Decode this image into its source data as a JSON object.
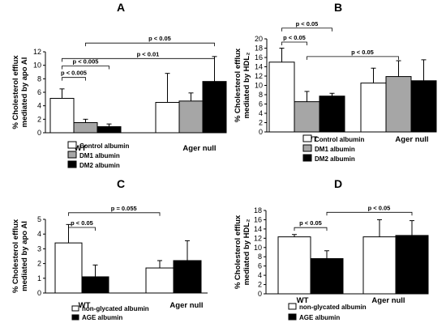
{
  "chart_data": [
    {
      "panel": "A",
      "type": "bar",
      "ylabel_lines": [
        "% Cholesterol efflux",
        "mediated by apo AI"
      ],
      "ylim": [
        0,
        12
      ],
      "yticks": [
        0,
        2,
        4,
        6,
        8,
        10,
        12
      ],
      "categories": [
        "WT",
        "Ager null"
      ],
      "series": [
        {
          "name": "Control albumin",
          "color": "#ffffff",
          "values": [
            5.1,
            4.5
          ],
          "errors": [
            1.4,
            4.3
          ]
        },
        {
          "name": "DM1 albumin",
          "color": "#a6a6a6",
          "values": [
            1.5,
            4.7
          ],
          "errors": [
            0.5,
            1.2
          ]
        },
        {
          "name": "DM2 albumin",
          "color": "#000000",
          "values": [
            0.9,
            7.6
          ],
          "errors": [
            0.4,
            3.7
          ]
        }
      ],
      "annotations": [
        {
          "text": "p < 0.005",
          "from": [
            0,
            0
          ],
          "to": [
            0,
            1
          ],
          "y": 8.2
        },
        {
          "text": "p < 0.005",
          "from": [
            0,
            0
          ],
          "to": [
            0,
            2
          ],
          "y": 9.9
        },
        {
          "text": "p < 0.01",
          "from": [
            0,
            0
          ],
          "to": [
            1,
            2
          ],
          "y": 11.0
        },
        {
          "text": "p < 0.05",
          "from": [
            0,
            1
          ],
          "to": [
            1,
            2
          ],
          "y": 13.3
        }
      ]
    },
    {
      "panel": "B",
      "type": "bar",
      "ylabel_lines": [
        "% Cholesterol efflux",
        "mediated by HDL₂"
      ],
      "ylim": [
        0,
        20
      ],
      "yticks": [
        0,
        2,
        4,
        6,
        8,
        10,
        12,
        14,
        16,
        18,
        20
      ],
      "categories": [
        "WT",
        "Ager null"
      ],
      "series": [
        {
          "name": "Control albumin",
          "color": "#ffffff",
          "values": [
            15.0,
            10.5
          ],
          "errors": [
            3.0,
            3.2
          ]
        },
        {
          "name": "DM1 albumin",
          "color": "#a6a6a6",
          "values": [
            6.5,
            11.9
          ],
          "errors": [
            2.2,
            3.4
          ]
        },
        {
          "name": "DM2 albumin",
          "color": "#000000",
          "values": [
            7.7,
            11.0
          ],
          "errors": [
            0.6,
            4.5
          ]
        }
      ],
      "annotations": [
        {
          "text": "p < 0.05",
          "from": [
            0,
            0
          ],
          "to": [
            0,
            1
          ],
          "y": 19.3
        },
        {
          "text": "p < 0.05",
          "from": [
            0,
            0
          ],
          "to": [
            0,
            2
          ],
          "y": 22.3
        },
        {
          "text": "p < 0.05",
          "from": [
            0,
            1
          ],
          "to": [
            1,
            1
          ],
          "y": 16.2
        }
      ]
    },
    {
      "panel": "C",
      "type": "bar",
      "ylabel_lines": [
        "% Cholesterol efflux",
        "mediated by apo AI"
      ],
      "ylim": [
        0,
        5
      ],
      "yticks": [
        0,
        1,
        2,
        3,
        4,
        5
      ],
      "categories": [
        "WT",
        "Ager null"
      ],
      "series": [
        {
          "name": "non-glycated albumin",
          "color": "#ffffff",
          "values": [
            3.4,
            1.7
          ],
          "errors": [
            1.25,
            0.5
          ]
        },
        {
          "name": "AGE albumin",
          "color": "#000000",
          "values": [
            1.1,
            2.2
          ],
          "errors": [
            0.8,
            1.35
          ]
        }
      ],
      "annotations": [
        {
          "text": "p < 0.05",
          "from": [
            0,
            0
          ],
          "to": [
            0,
            1
          ],
          "y": 4.45
        },
        {
          "text": "p = 0.055",
          "from": [
            0,
            0
          ],
          "to": [
            1,
            0
          ],
          "y": 5.45
        }
      ]
    },
    {
      "panel": "D",
      "type": "bar",
      "ylabel_lines": [
        "% Cholesterol efflux",
        "mediated by HDL₂"
      ],
      "ylim": [
        0,
        18
      ],
      "yticks": [
        0,
        2,
        4,
        6,
        8,
        10,
        12,
        14,
        16,
        18
      ],
      "categories": [
        "WT",
        "Ager null"
      ],
      "series": [
        {
          "name": "non-glycated albumin",
          "color": "#ffffff",
          "values": [
            12.3,
            12.3
          ],
          "errors": [
            0.5,
            3.7
          ]
        },
        {
          "name": "AGE albumin",
          "color": "#000000",
          "values": [
            7.6,
            12.6
          ],
          "errors": [
            1.7,
            3.2
          ]
        }
      ],
      "annotations": [
        {
          "text": "p < 0.05",
          "from": [
            0,
            0
          ],
          "to": [
            0,
            1
          ],
          "y": 14.3
        },
        {
          "text": "p < 0.05",
          "from": [
            0,
            1
          ],
          "to": [
            1,
            1
          ],
          "y": 17.6
        }
      ]
    }
  ]
}
